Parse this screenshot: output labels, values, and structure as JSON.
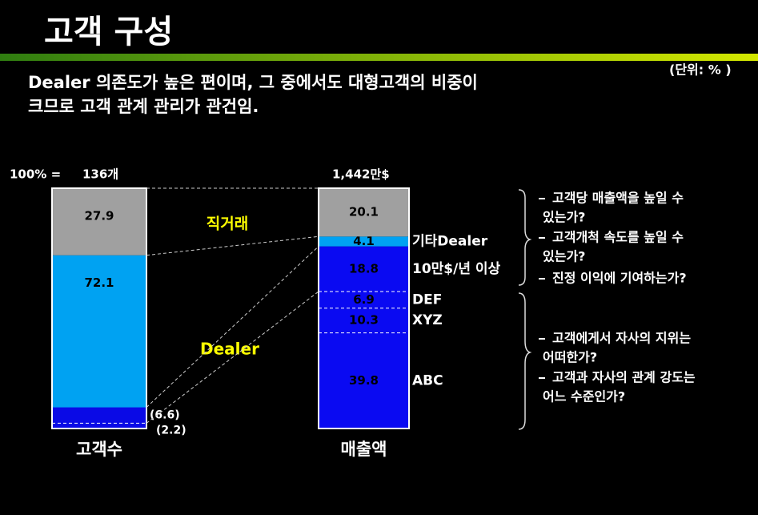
{
  "title": "고객 구성",
  "subtitle": [
    "Dealer 의존도가 높은 편이며, 그 중에서도 대형고객의 비중이",
    "크므로  고객 관계 관리가 관건임."
  ],
  "unit_note": "(단위: % )",
  "chart_data": {
    "type": "stacked_bar",
    "ylim": [
      0,
      100
    ],
    "total_prefix": "100% =",
    "annotations": [
      "직거래",
      "Dealer"
    ],
    "bars": [
      {
        "category": "고객수",
        "total_label": "136개",
        "segments": [
          {
            "value": 72.1,
            "color": "#00a2f2",
            "sub": [
              {
                "value": 2.2,
                "value_label": "(2.2)",
                "color": "#0a0ae6"
              },
              {
                "value": 6.6,
                "value_label": "(6.6)",
                "color": "#0a0ae6"
              }
            ]
          },
          {
            "value": 27.9,
            "color": "#a0a0a0"
          }
        ]
      },
      {
        "category": "매출액",
        "total_label": "1,442만$",
        "segments": [
          {
            "name": "ABC",
            "value": 39.8,
            "color": "#0a0af2"
          },
          {
            "name": "XYZ",
            "value": 10.3,
            "color": "#0a0af2"
          },
          {
            "name": "DEF",
            "value": 6.9,
            "color": "#0a0af2"
          },
          {
            "name": "10만$/년 이상",
            "value": 18.8,
            "color": "#0a0af2"
          },
          {
            "name": "기타Dealer",
            "value": 4.1,
            "color": "#00a2f2"
          },
          {
            "value": 20.1,
            "color": "#a0a0a0"
          }
        ]
      }
    ]
  },
  "questions": [
    {
      "items": [
        [
          "고객당 매출액을 높일 수",
          "있는가?"
        ],
        [
          "고객개척 속도를 높일 수",
          "있는가?"
        ],
        [
          "진정 이익에 기여하는가?"
        ]
      ]
    },
    {
      "items": [
        [
          "고객에게서 자사의 지위는",
          "어떠한가?"
        ],
        [
          "고객과 자사의 관계 강도는",
          "어느 수준인가?"
        ]
      ]
    }
  ]
}
